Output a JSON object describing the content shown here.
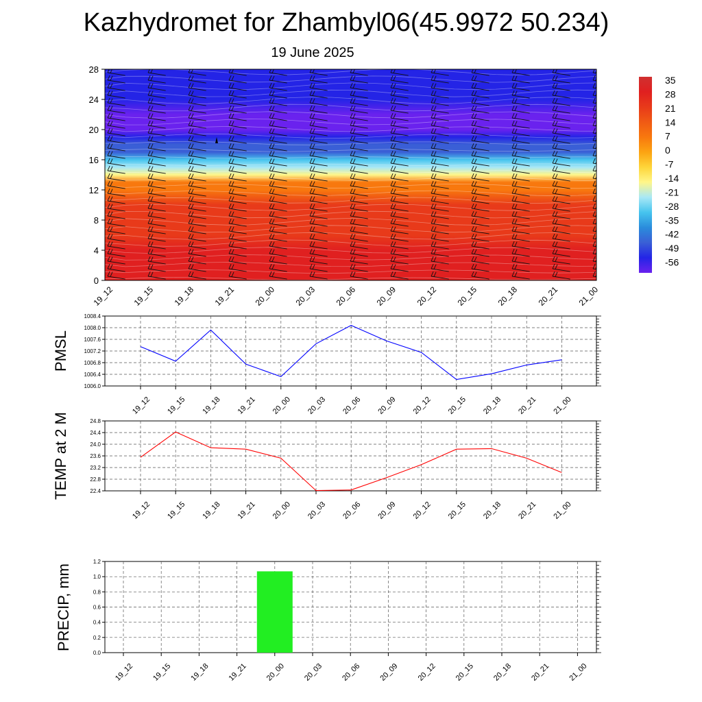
{
  "title": "Kazhydromet for Zhambyl06(45.9972 50.234)",
  "subtitle": "19 June 2025",
  "time_labels": [
    "19_12",
    "19_15",
    "19_18",
    "19_21",
    "20_00",
    "20_03",
    "20_06",
    "20_09",
    "20_12",
    "20_15",
    "20_18",
    "20_21",
    "21_00"
  ],
  "colors": {
    "pmsl_line": "#0000ff",
    "temp_line": "#ff0000",
    "precip_bar": "#22ee22",
    "grid": "#555555"
  },
  "chart_data": [
    {
      "type": "heatmap",
      "panel": "cross-section",
      "title": "",
      "yticks": [
        "0",
        "4",
        "8",
        "12",
        "16",
        "20",
        "24",
        "28"
      ],
      "ylim": [
        0,
        28
      ],
      "colorbar": {
        "labels": [
          "35",
          "28",
          "21",
          "14",
          "7",
          "0",
          "-7",
          "-14",
          "-21",
          "-28",
          "-35",
          "-42",
          "-49",
          "-56"
        ],
        "colors": [
          "#d03030",
          "#e02020",
          "#e83a1a",
          "#f05a14",
          "#f8780e",
          "#fca412",
          "#fed63a",
          "#fff68a",
          "#a8e8f6",
          "#46c4ee",
          "#2a8cdc",
          "#3a5fd6",
          "#2424e6",
          "#6a22ee"
        ]
      },
      "temperature_levels": {
        "y": [
          0,
          2,
          4,
          6,
          8,
          10,
          12,
          13,
          14,
          15,
          16,
          17,
          18,
          19,
          20,
          22,
          24,
          26,
          28
        ],
        "values": [
          30,
          28,
          26,
          24,
          22,
          19,
          7,
          4,
          -14,
          -21,
          -30,
          -40,
          -45,
          -50,
          -55,
          -56,
          -52,
          -48,
          -50
        ]
      },
      "wind_barbs": "present"
    },
    {
      "type": "line",
      "panel": "pmsl",
      "ylabel": "PMSL",
      "categories": [
        "19_12",
        "19_15",
        "19_18",
        "19_21",
        "20_00",
        "20_03",
        "20_06",
        "20_09",
        "20_12",
        "20_15",
        "20_18",
        "20_21",
        "21_00"
      ],
      "series": [
        {
          "values": [
            1007.35,
            1006.85,
            1007.92,
            1006.75,
            1006.32,
            1007.45,
            1008.08,
            1007.55,
            1007.15,
            1006.22,
            1006.42,
            1006.72,
            1006.9
          ]
        }
      ],
      "ylim": [
        1006.0,
        1008.4
      ],
      "yticks": [
        "1006.0",
        "1006.4",
        "1006.8",
        "1007.2",
        "1007.6",
        "1008.0",
        "1008.4"
      ],
      "grid": true
    },
    {
      "type": "line",
      "panel": "temp",
      "ylabel": "TEMP at 2 M",
      "categories": [
        "19_12",
        "19_15",
        "19_18",
        "19_21",
        "20_00",
        "20_03",
        "20_06",
        "20_09",
        "20_12",
        "20_15",
        "20_18",
        "20_21",
        "21_00"
      ],
      "series": [
        {
          "values": [
            23.55,
            24.42,
            23.88,
            23.83,
            23.52,
            22.41,
            22.43,
            22.85,
            23.3,
            23.83,
            23.85,
            23.52,
            23.03
          ]
        }
      ],
      "ylim": [
        22.4,
        24.8
      ],
      "yticks": [
        "22.4",
        "22.8",
        "23.2",
        "23.6",
        "24.0",
        "24.4",
        "24.8"
      ],
      "grid": true
    },
    {
      "type": "bar",
      "panel": "precip",
      "ylabel": "PRECIP, mm",
      "categories": [
        "19_12",
        "19_15",
        "19_18",
        "19_21",
        "20_00",
        "20_03",
        "20_06",
        "20_09",
        "20_12",
        "20_15",
        "20_18",
        "20_21",
        "21_00"
      ],
      "values": [
        0,
        0,
        0,
        0,
        1.07,
        0,
        0,
        0,
        0,
        0,
        0,
        0,
        0
      ],
      "ylim": [
        0,
        1.2
      ],
      "yticks": [
        "0.0",
        "0.2",
        "0.4",
        "0.6",
        "0.8",
        "1.0",
        "1.2"
      ],
      "grid": true
    }
  ]
}
